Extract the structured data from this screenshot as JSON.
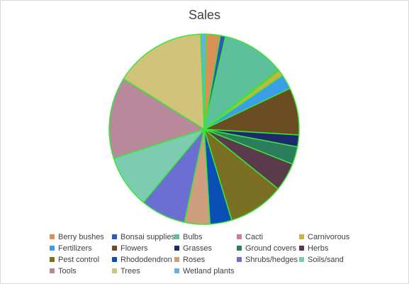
{
  "chart_data": {
    "type": "pie",
    "title": "Sales",
    "legend_position": "bottom",
    "slice_outline_color": "#39e639",
    "slices": [
      {
        "label": "Berry bushes",
        "value": 2.4,
        "color": "#d99056"
      },
      {
        "label": "Bonsai supplies",
        "value": 0.9,
        "color": "#3357b8"
      },
      {
        "label": "Bulbs",
        "value": 10.5,
        "color": "#5dbf9c"
      },
      {
        "label": "Cacti",
        "value": 0.3,
        "color": "#c97b9a"
      },
      {
        "label": "Carnivorous",
        "value": 1.0,
        "color": "#c8b540"
      },
      {
        "label": "Fertilizers",
        "value": 2.5,
        "color": "#3c9ee8"
      },
      {
        "label": "Flowers",
        "value": 8.0,
        "color": "#6b4d22"
      },
      {
        "label": "Grasses",
        "value": 2.0,
        "color": "#1c2a6b"
      },
      {
        "label": "Ground covers",
        "value": 3.0,
        "color": "#2b7d5d"
      },
      {
        "label": "Herbs",
        "value": 4.8,
        "color": "#5b3a4c"
      },
      {
        "label": "Pest control",
        "value": 9.5,
        "color": "#7a6f22"
      },
      {
        "label": "Rhododendron",
        "value": 3.7,
        "color": "#0a4fb5"
      },
      {
        "label": "Roses",
        "value": 4.3,
        "color": "#cf9e7f"
      },
      {
        "label": "Shrubs/hedges",
        "value": 7.7,
        "color": "#6b6fd1"
      },
      {
        "label": "Soils/sand",
        "value": 9.0,
        "color": "#7dccb2"
      },
      {
        "label": "Tools",
        "value": 13.8,
        "color": "#b8899a"
      },
      {
        "label": "Trees",
        "value": 15.5,
        "color": "#d1c47a"
      },
      {
        "label": "Wetland plants",
        "value": 0.9,
        "color": "#6aaee8"
      }
    ]
  }
}
